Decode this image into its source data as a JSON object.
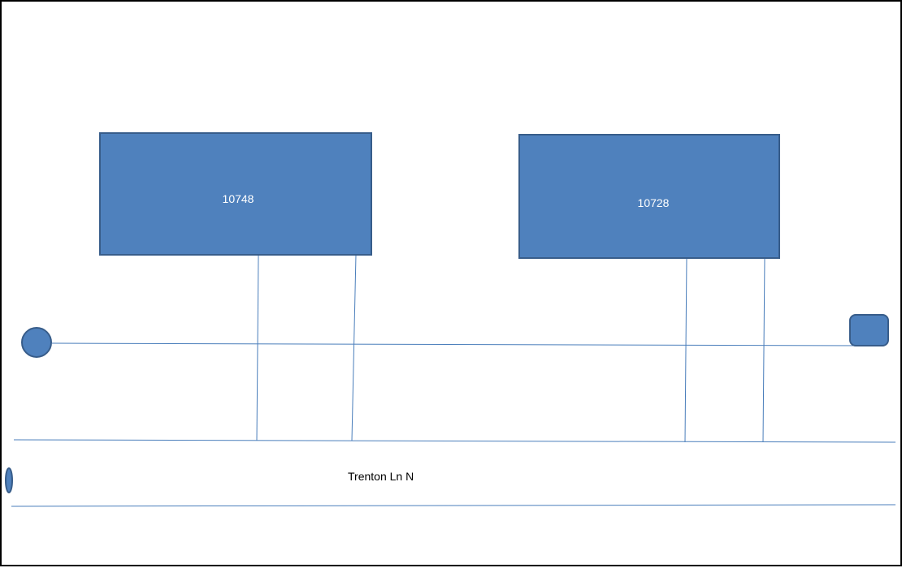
{
  "diagram": {
    "buildings": [
      {
        "label": "10748"
      },
      {
        "label": "10728"
      }
    ],
    "street": {
      "label": "Trenton Ln N"
    },
    "colors": {
      "shape_fill": "#4f81bd",
      "shape_stroke": "#385d8a",
      "line": "#4a7ebb",
      "border": "#000000",
      "background": "#ffffff"
    }
  }
}
